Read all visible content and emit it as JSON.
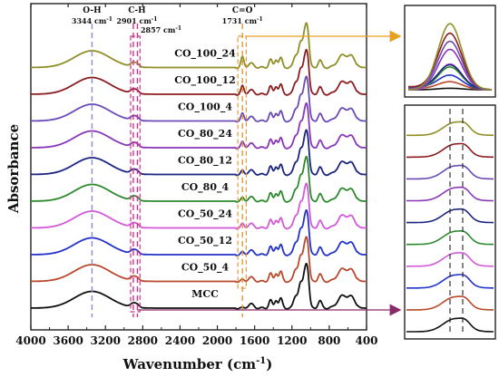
{
  "chart_data": {
    "type": "line",
    "title": "",
    "xlabel_main": "Wavenumber (cm",
    "xlabel_sup": "-1",
    "xlabel_close": ")",
    "ylabel": "Absorbance",
    "xlim": [
      4000,
      400
    ],
    "x_ticks": [
      4000,
      3600,
      3200,
      2800,
      2400,
      2000,
      1600,
      1200,
      800,
      400
    ],
    "grid": false,
    "series": [
      {
        "name": "MCC",
        "color": "#111111"
      },
      {
        "name": "CO_50_4",
        "color": "#b8492c"
      },
      {
        "name": "CO_50_12",
        "color": "#2332c8"
      },
      {
        "name": "CO_50_24",
        "color": "#d259d8"
      },
      {
        "name": "CO_80_4",
        "color": "#2c8a2c"
      },
      {
        "name": "CO_80_12",
        "color": "#1b2480"
      },
      {
        "name": "CO_80_24",
        "color": "#8a36b8"
      },
      {
        "name": "CO_100_4",
        "color": "#6a4bb6"
      },
      {
        "name": "CO_100_12",
        "color": "#8c1d20"
      },
      {
        "name": "CO_100_24",
        "color": "#8f8f26"
      }
    ],
    "bands": [
      {
        "label": "O-H",
        "wavenumber_label": "3344 cm",
        "x": 3344,
        "color": "#8b8bdc"
      },
      {
        "label": "C-H",
        "wavenumber_label": "2901 cm",
        "x": 2901,
        "color": "#d0308a"
      },
      {
        "label": "",
        "wavenumber_label": "2857 cm",
        "x": 2857,
        "color": "#d0308a"
      },
      {
        "label": "C=O",
        "wavenumber_label": "1731 cm",
        "x": 1731,
        "color": "#e09a3a"
      }
    ],
    "band_sup": "-1",
    "insets": [
      {
        "name": "carbonyl-zoom",
        "arrow_color": "#e8a020"
      },
      {
        "name": "ch-zoom",
        "arrow_color": "#8a2a6a"
      }
    ]
  }
}
